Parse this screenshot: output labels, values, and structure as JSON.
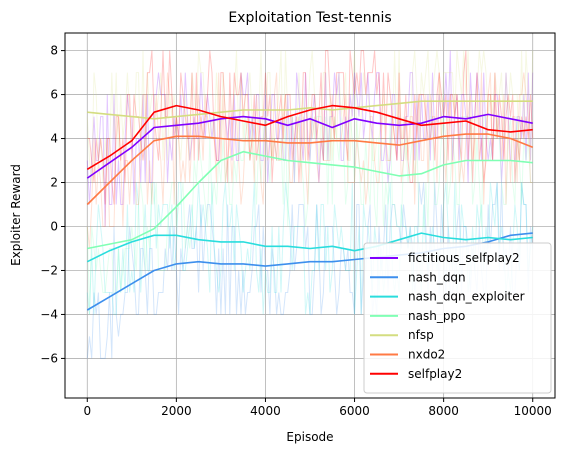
{
  "chart_data": {
    "type": "line",
    "title": "Exploitation Test-tennis",
    "xlabel": "Episode",
    "ylabel": "Exploiter Reward",
    "xlim": [
      -500,
      10500
    ],
    "ylim": [
      -7.8,
      8.8
    ],
    "xticks": [
      0,
      2000,
      4000,
      6000,
      8000,
      10000
    ],
    "yticks": [
      -6,
      -4,
      -2,
      0,
      2,
      4,
      6,
      8
    ],
    "xtick_labels": [
      "0",
      "2000",
      "4000",
      "6000",
      "8000",
      "10000"
    ],
    "ytick_labels": [
      "−6",
      "−4",
      "−2",
      "0",
      "2",
      "4",
      "6",
      "8"
    ],
    "grid": true,
    "legend_position": "lower-right",
    "x": [
      0,
      500,
      1000,
      1500,
      2000,
      2500,
      3000,
      3500,
      4000,
      4500,
      5000,
      5500,
      6000,
      6500,
      7000,
      7500,
      8000,
      8500,
      9000,
      9500,
      10000
    ],
    "series": [
      {
        "name": "fictitious_selfplay2",
        "color": "#8000ff",
        "values": [
          2.2,
          2.9,
          3.6,
          4.5,
          4.6,
          4.7,
          4.9,
          5.0,
          4.9,
          4.6,
          4.9,
          4.5,
          4.9,
          4.7,
          4.6,
          4.7,
          5.0,
          4.9,
          5.1,
          4.9,
          4.7
        ]
      },
      {
        "name": "nash_dqn",
        "color": "#3d8fed",
        "values": [
          -3.8,
          -3.2,
          -2.6,
          -2.0,
          -1.7,
          -1.6,
          -1.7,
          -1.7,
          -1.8,
          -1.7,
          -1.6,
          -1.6,
          -1.5,
          -1.4,
          -1.3,
          -1.2,
          -1.0,
          -0.9,
          -0.7,
          -0.4,
          -0.3
        ]
      },
      {
        "name": "nash_dqn_exploiter",
        "color": "#2adddd",
        "values": [
          -1.6,
          -1.1,
          -0.7,
          -0.4,
          -0.4,
          -0.6,
          -0.7,
          -0.7,
          -0.9,
          -0.9,
          -1.0,
          -0.9,
          -1.1,
          -0.9,
          -0.6,
          -0.3,
          -0.5,
          -0.6,
          -0.5,
          -0.6,
          -0.5
        ]
      },
      {
        "name": "nash_ppo",
        "color": "#80ffb4",
        "values": [
          -1.0,
          -0.8,
          -0.6,
          -0.1,
          0.9,
          2.0,
          3.0,
          3.4,
          3.2,
          3.0,
          2.9,
          2.8,
          2.7,
          2.5,
          2.3,
          2.4,
          2.8,
          3.0,
          3.0,
          3.0,
          2.9
        ]
      },
      {
        "name": "nfsp",
        "color": "#d4dd80",
        "values": [
          5.2,
          5.1,
          5.0,
          4.9,
          5.0,
          5.1,
          5.2,
          5.3,
          5.3,
          5.3,
          5.4,
          5.3,
          5.4,
          5.5,
          5.6,
          5.7,
          5.7,
          5.7,
          5.7,
          5.7,
          5.7
        ]
      },
      {
        "name": "nxdo2",
        "color": "#ff7a44",
        "values": [
          1.0,
          2.0,
          3.0,
          3.9,
          4.1,
          4.1,
          4.0,
          3.9,
          3.9,
          3.8,
          3.8,
          3.9,
          3.9,
          3.8,
          3.7,
          3.9,
          4.1,
          4.2,
          4.2,
          4.0,
          3.6
        ]
      },
      {
        "name": "selfplay2",
        "color": "#ff0000",
        "values": [
          2.6,
          3.2,
          3.9,
          5.2,
          5.5,
          5.3,
          5.0,
          4.8,
          4.6,
          5.0,
          5.3,
          5.5,
          5.4,
          5.2,
          4.9,
          4.6,
          4.7,
          4.8,
          4.4,
          4.3,
          4.4
        ]
      }
    ]
  }
}
